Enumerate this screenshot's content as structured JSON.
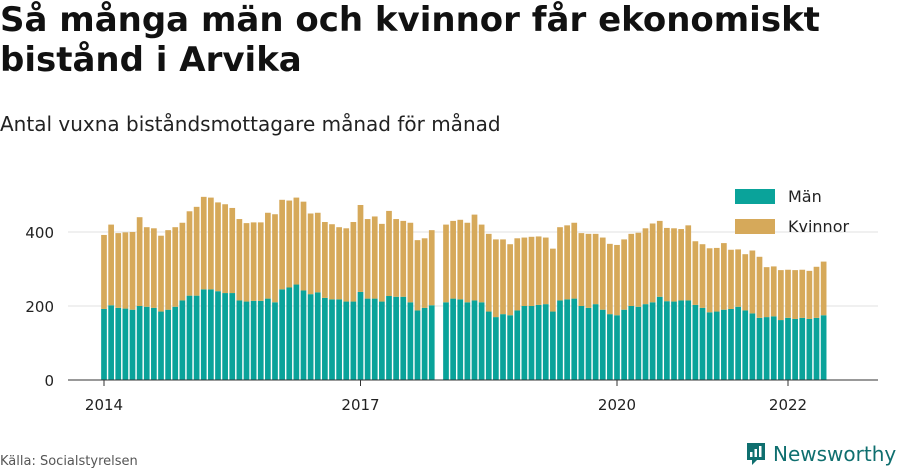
{
  "title": "Så många män och kvinnor får ekonomiskt bistånd i Arvika",
  "subtitle": "Antal vuxna biståndsmottagare månad för månad",
  "source": "Källa: Socialstyrelsen",
  "brand": "Newsworthy",
  "colors": {
    "men": "#0aa39a",
    "women": "#d6a95a",
    "grid": "#e2e2e2",
    "axis": "#333333",
    "brand": "#0f6f6f"
  },
  "chart_data": {
    "type": "bar",
    "stacked": true,
    "ylim": [
      0,
      500
    ],
    "yticks": [
      0,
      200,
      400
    ],
    "xticks": [
      {
        "label": "2014",
        "index": 0
      },
      {
        "label": "2017",
        "index": 36
      },
      {
        "label": "2020",
        "index": 72
      },
      {
        "label": "2022",
        "index": 96
      }
    ],
    "legend": [
      "Män",
      "Kvinnor"
    ],
    "legend_position": "top-right",
    "grid": true,
    "series": [
      {
        "name": "Män",
        "values": [
          192,
          202,
          195,
          193,
          190,
          200,
          198,
          195,
          185,
          190,
          198,
          215,
          228,
          228,
          245,
          245,
          240,
          235,
          235,
          215,
          212,
          214,
          214,
          220,
          210,
          245,
          250,
          258,
          242,
          232,
          237,
          222,
          218,
          218,
          212,
          212,
          238,
          220,
          220,
          212,
          227,
          225,
          225,
          210,
          188,
          195,
          202,
          null,
          210,
          220,
          218,
          210,
          215,
          210,
          185,
          170,
          178,
          175,
          188,
          200,
          200,
          203,
          205,
          185,
          215,
          218,
          220,
          200,
          195,
          205,
          190,
          178,
          175,
          190,
          200,
          198,
          205,
          210,
          225,
          213,
          212,
          215,
          215,
          203,
          195,
          183,
          185,
          190,
          192,
          198,
          188,
          180,
          168,
          170,
          172,
          162,
          168,
          165,
          168,
          165,
          168,
          175
        ]
      },
      {
        "name": "Kvinnor",
        "values": [
          200,
          218,
          202,
          206,
          210,
          240,
          215,
          215,
          205,
          215,
          215,
          210,
          228,
          240,
          250,
          248,
          240,
          240,
          230,
          220,
          212,
          212,
          212,
          232,
          238,
          242,
          235,
          235,
          240,
          218,
          215,
          205,
          203,
          195,
          198,
          215,
          235,
          215,
          222,
          210,
          230,
          210,
          205,
          215,
          190,
          188,
          203,
          null,
          210,
          210,
          215,
          215,
          232,
          210,
          210,
          210,
          202,
          192,
          195,
          185,
          187,
          185,
          180,
          170,
          198,
          200,
          205,
          197,
          200,
          190,
          195,
          190,
          190,
          190,
          195,
          200,
          205,
          213,
          205,
          198,
          198,
          193,
          203,
          172,
          172,
          173,
          172,
          180,
          160,
          155,
          152,
          170,
          165,
          135,
          135,
          135,
          130,
          132,
          130,
          130,
          138,
          145
        ]
      }
    ]
  }
}
